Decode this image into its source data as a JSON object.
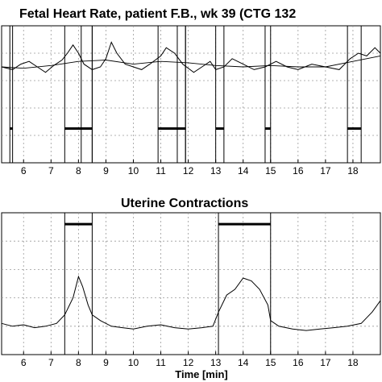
{
  "chart_data": [
    {
      "type": "line",
      "title": "Fetal Heart Rate, patient F.B., wk 39  (CTG 132",
      "xlabel": "",
      "ylabel": "",
      "xlim": [
        5.2,
        19.0
      ],
      "xticks": [
        6,
        7,
        8,
        9,
        10,
        11,
        12,
        13,
        14,
        15,
        16,
        17,
        18
      ],
      "grid": true,
      "series": [
        {
          "values": [
            [
              5.2,
              70
            ],
            [
              5.6,
              68
            ],
            [
              5.9,
              72
            ],
            [
              6.2,
              74
            ],
            [
              6.5,
              70
            ],
            [
              6.8,
              66
            ],
            [
              7.1,
              71
            ],
            [
              7.4,
              75
            ],
            [
              7.6,
              80
            ],
            [
              7.8,
              86
            ],
            [
              8.0,
              80
            ],
            [
              8.2,
              72
            ],
            [
              8.5,
              68
            ],
            [
              8.8,
              70
            ],
            [
              9.0,
              76
            ],
            [
              9.2,
              88
            ],
            [
              9.4,
              80
            ],
            [
              9.7,
              72
            ],
            [
              10.0,
              70
            ],
            [
              10.3,
              68
            ],
            [
              10.6,
              72
            ],
            [
              11.0,
              78
            ],
            [
              11.2,
              84
            ],
            [
              11.5,
              80
            ],
            [
              11.8,
              72
            ],
            [
              12.2,
              66
            ],
            [
              12.5,
              70
            ],
            [
              12.8,
              74
            ],
            [
              13.0,
              68
            ],
            [
              13.3,
              70
            ],
            [
              13.6,
              76
            ],
            [
              14.0,
              72
            ],
            [
              14.4,
              68
            ],
            [
              14.8,
              70
            ],
            [
              15.2,
              74
            ],
            [
              15.6,
              70
            ],
            [
              16.0,
              68
            ],
            [
              16.5,
              72
            ],
            [
              17.0,
              70
            ],
            [
              17.5,
              68
            ],
            [
              17.9,
              76
            ],
            [
              18.2,
              80
            ],
            [
              18.5,
              78
            ],
            [
              18.8,
              84
            ],
            [
              19.0,
              80
            ]
          ]
        },
        {
          "values": [
            [
              5.2,
              70
            ],
            [
              6,
              69
            ],
            [
              7,
              71
            ],
            [
              8,
              74
            ],
            [
              9,
              75
            ],
            [
              10,
              72
            ],
            [
              11,
              74
            ],
            [
              12,
              73
            ],
            [
              13,
              71
            ],
            [
              14,
              70
            ],
            [
              15,
              71
            ],
            [
              16,
              70
            ],
            [
              17,
              70
            ],
            [
              18,
              74
            ],
            [
              19,
              78
            ]
          ]
        }
      ],
      "markers": [
        {
          "x": [
            5.5,
            5.6
          ]
        },
        {
          "x": [
            7.5,
            8.5
          ]
        },
        {
          "x": [
            8.1,
            8.5
          ]
        },
        {
          "x": [
            10.9,
            11.9
          ]
        },
        {
          "x": [
            11.6,
            11.9
          ]
        },
        {
          "x": [
            13.0,
            13.3
          ]
        },
        {
          "x": [
            14.8,
            15.0
          ]
        },
        {
          "x": [
            17.8,
            18.3
          ]
        }
      ],
      "markers_y": 25
    },
    {
      "type": "line",
      "title": "Uterine Contractions",
      "xlabel": "Time [min]",
      "ylabel": "",
      "xlim": [
        5.2,
        19.0
      ],
      "xticks": [
        6,
        7,
        8,
        9,
        10,
        11,
        12,
        13,
        14,
        15,
        16,
        17,
        18
      ],
      "grid": true,
      "series": [
        {
          "values": [
            [
              5.2,
              22
            ],
            [
              5.6,
              20
            ],
            [
              6.0,
              21
            ],
            [
              6.4,
              19
            ],
            [
              6.8,
              20
            ],
            [
              7.2,
              22
            ],
            [
              7.5,
              28
            ],
            [
              7.8,
              40
            ],
            [
              8.0,
              55
            ],
            [
              8.15,
              48
            ],
            [
              8.35,
              35
            ],
            [
              8.5,
              28
            ],
            [
              8.8,
              24
            ],
            [
              9.2,
              20
            ],
            [
              9.6,
              19
            ],
            [
              10.0,
              18
            ],
            [
              10.5,
              20
            ],
            [
              11.0,
              21
            ],
            [
              11.5,
              19
            ],
            [
              12.0,
              18
            ],
            [
              12.5,
              19
            ],
            [
              12.9,
              20
            ],
            [
              13.1,
              30
            ],
            [
              13.4,
              42
            ],
            [
              13.7,
              46
            ],
            [
              14.0,
              54
            ],
            [
              14.3,
              52
            ],
            [
              14.6,
              46
            ],
            [
              14.9,
              35
            ],
            [
              15.0,
              24
            ],
            [
              15.3,
              20
            ],
            [
              15.8,
              18
            ],
            [
              16.3,
              17
            ],
            [
              16.8,
              18
            ],
            [
              17.3,
              19
            ],
            [
              17.8,
              20
            ],
            [
              18.3,
              22
            ],
            [
              18.7,
              30
            ],
            [
              19.0,
              38
            ]
          ]
        }
      ],
      "markers": [
        {
          "x": [
            7.5,
            8.5
          ]
        },
        {
          "x": [
            13.1,
            15.0
          ]
        }
      ],
      "markers_y": 92
    }
  ]
}
